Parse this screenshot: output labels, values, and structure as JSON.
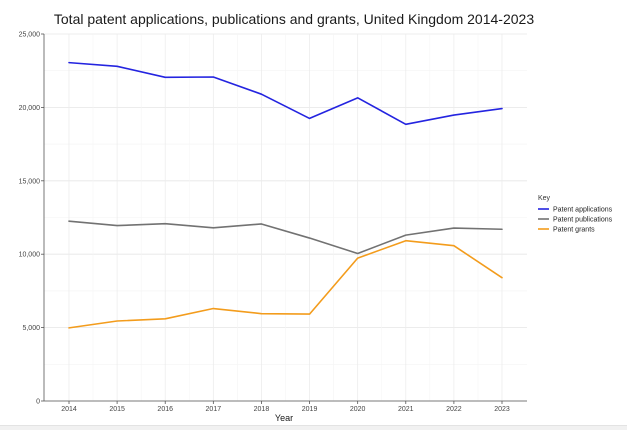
{
  "chart_data": {
    "type": "line",
    "title": "Total patent applications, publications and grants, United Kingdom 2014-2023",
    "xlabel": "Year",
    "ylabel": "",
    "x": [
      "2014",
      "2015",
      "2016",
      "2017",
      "2018",
      "2019",
      "2020",
      "2021",
      "2022",
      "2023"
    ],
    "ylim": [
      0,
      25000
    ],
    "yticks": [
      0,
      5000,
      10000,
      15000,
      20000,
      25000
    ],
    "ytick_labels": [
      "0",
      "5,000",
      "10,000",
      "15,000",
      "20,000",
      "25,000"
    ],
    "grid": true,
    "legend": {
      "title": "Key",
      "placement": "right"
    },
    "series": [
      {
        "name": "Patent applications",
        "color": "#2424e0",
        "values": [
          23050,
          22800,
          22050,
          22070,
          20900,
          19250,
          20650,
          18850,
          19480,
          19920
        ]
      },
      {
        "name": "Patent publications",
        "color": "#727272",
        "values": [
          12250,
          11950,
          12080,
          11800,
          12060,
          11100,
          10050,
          11300,
          11780,
          11700
        ]
      },
      {
        "name": "Patent grants",
        "color": "#f39c1c",
        "values": [
          4980,
          5450,
          5600,
          6300,
          5950,
          5920,
          9730,
          10920,
          10580,
          8400
        ]
      }
    ]
  }
}
